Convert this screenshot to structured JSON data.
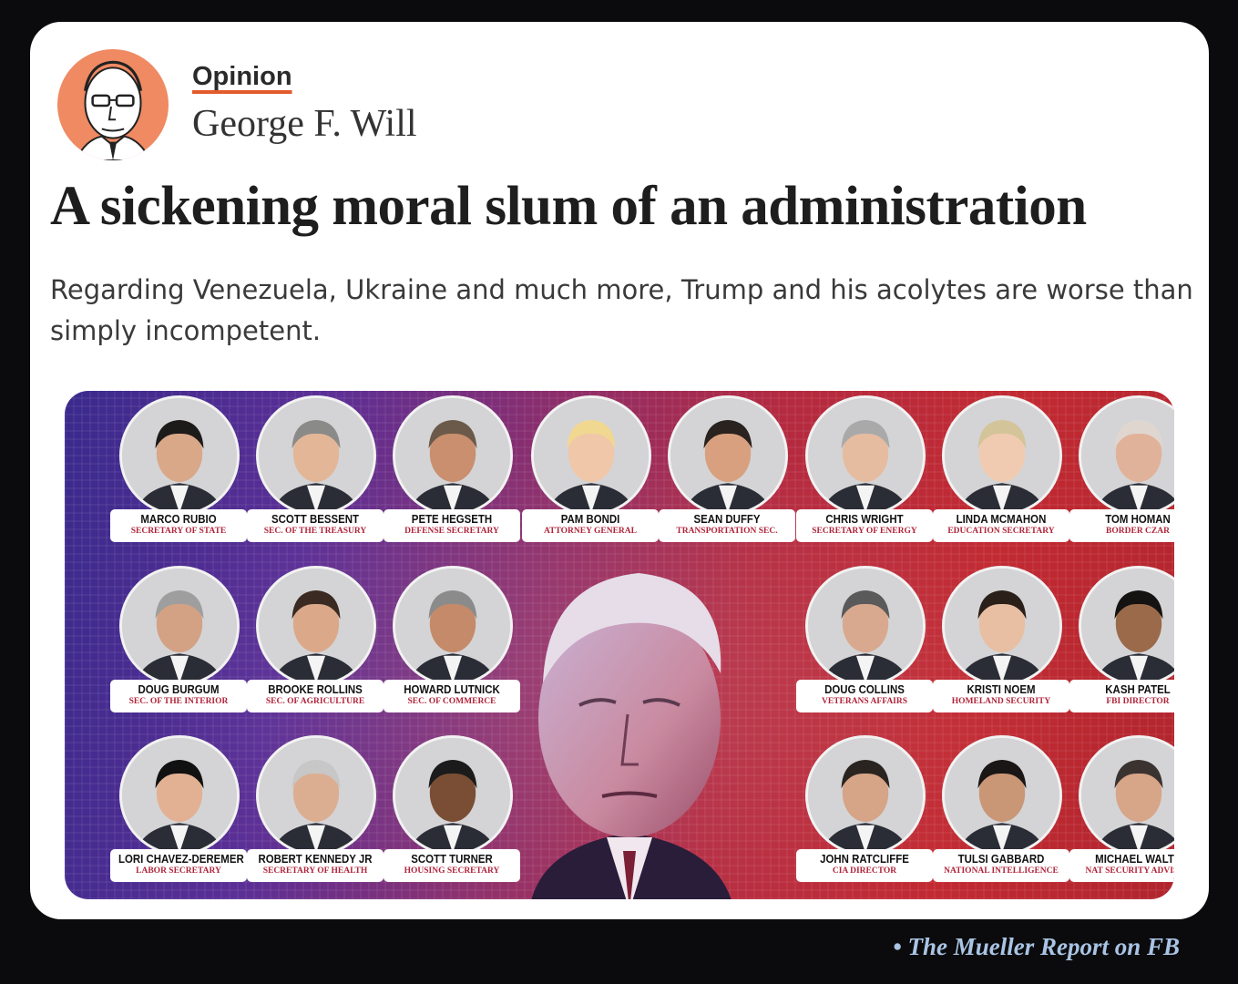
{
  "article": {
    "section": "Opinion",
    "author": "George F. Will",
    "headline": "A sickening moral slum of an administration",
    "subheadline": "Regarding Venezuela, Ukraine and much more, Trump and his acolytes are worse than simply incompetent."
  },
  "colors": {
    "accent_underline": "#e25b2c",
    "author_avatar_bg": "#ef8a62",
    "role_text": "#b0243a",
    "credit_text": "#a9c4e4"
  },
  "cabinet": [
    {
      "name": "MARCO RUBIO",
      "role": "SECRETARY OF STATE"
    },
    {
      "name": "SCOTT BESSENT",
      "role": "SEC. OF THE TREASURY"
    },
    {
      "name": "PETE HEGSETH",
      "role": "DEFENSE SECRETARY"
    },
    {
      "name": "PAM BONDI",
      "role": "ATTORNEY GENERAL"
    },
    {
      "name": "SEAN DUFFY",
      "role": "TRANSPORTATION SEC."
    },
    {
      "name": "CHRIS WRIGHT",
      "role": "SECRETARY OF ENERGY"
    },
    {
      "name": "LINDA MCMAHON",
      "role": "EDUCATION SECRETARY"
    },
    {
      "name": "TOM HOMAN",
      "role": "BORDER CZAR"
    },
    {
      "name": "DOUG BURGUM",
      "role": "SEC. OF THE INTERIOR"
    },
    {
      "name": "BROOKE ROLLINS",
      "role": "SEC. OF AGRICULTURE"
    },
    {
      "name": "HOWARD LUTNICK",
      "role": "SEC. OF COMMERCE"
    },
    {
      "name": "DOUG COLLINS",
      "role": "VETERANS AFFAIRS"
    },
    {
      "name": "KRISTI NOEM",
      "role": "HOMELAND SECURITY"
    },
    {
      "name": "KASH PATEL",
      "role": "FBI DIRECTOR"
    },
    {
      "name": "LORI CHAVEZ-DEREMER",
      "role": "LABOR SECRETARY"
    },
    {
      "name": "ROBERT KENNEDY JR",
      "role": "SECRETARY OF HEALTH"
    },
    {
      "name": "SCOTT TURNER",
      "role": "HOUSING SECRETARY"
    },
    {
      "name": "JOHN RATCLIFFE",
      "role": "CIA DIRECTOR"
    },
    {
      "name": "TULSI GABBARD",
      "role": "NATIONAL INTELLIGENCE"
    },
    {
      "name": "MICHAEL WALTZ",
      "role": "NAT SECURITY ADVISER"
    }
  ],
  "credit": "• The Mueller Report on FB"
}
